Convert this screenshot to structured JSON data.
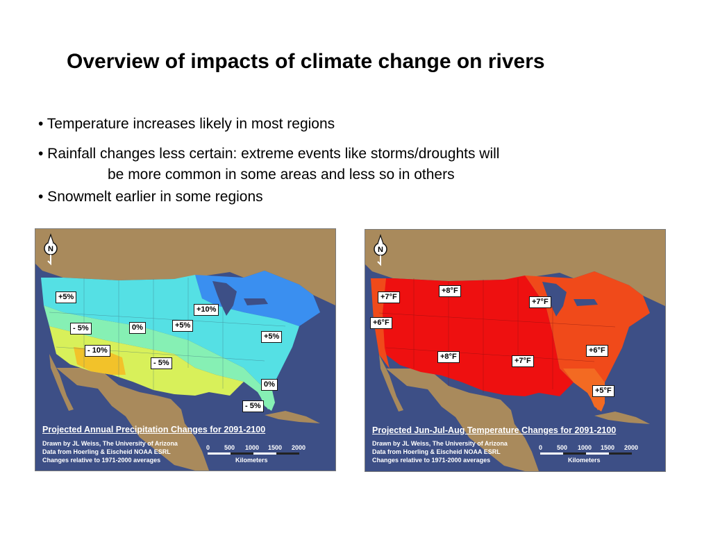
{
  "title": "Overview of impacts of climate change on rivers",
  "bullets": [
    "• Temperature increases likely in most regions",
    "•  Rainfall changes less certain: extreme events like storms/droughts will",
    "be more common in some areas and less so in others",
    "• Snowmelt earlier in some regions"
  ],
  "maps": {
    "precip": {
      "caption": "Projected Annual Precipitation Changes for 2091-2100",
      "credits": [
        "Drawn by JL Weiss, The University of Arizona",
        "Data from Hoerling & Eischeid NOAA ESRL",
        "Changes relative to 1971-2000 averages"
      ],
      "labels": [
        "+5%",
        "+10%",
        "- 5%",
        "0%",
        "+5%",
        "+5%",
        "- 10%",
        "- 5%",
        "0%",
        "- 5%"
      ]
    },
    "temp": {
      "caption": "Projected Jun-Jul-Aug Temperature Changes for 2091-2100",
      "credits": [
        "Drawn by JL Weiss, The University of Arizona",
        "Data from Hoerling & Eischeid NOAA ESRL",
        "Changes relative to 1971-2000 averages"
      ],
      "labels": [
        "+8°F",
        "+7°F",
        "+7°F",
        "+6°F",
        "+8°F",
        "+7°F",
        "+6°F",
        "+5°F"
      ]
    }
  },
  "scale": {
    "ticks": [
      "0",
      "500",
      "1000",
      "1500",
      "2000"
    ],
    "unit": "Kilometers"
  },
  "colors": {
    "ocean": "#3d4f86",
    "land": "#a98a5c",
    "precip_wet": "#3a8ff0",
    "precip_mid": "#55e0e4",
    "precip_neutral": "#86f0b4",
    "precip_dry": "#d8f05a",
    "precip_driest": "#f2c22a",
    "temp_hot": "#ee1010",
    "temp_warm": "#f04a1a",
    "temp_mild": "#f36a22"
  },
  "icons": {
    "north_arrow": "north-arrow-icon"
  }
}
